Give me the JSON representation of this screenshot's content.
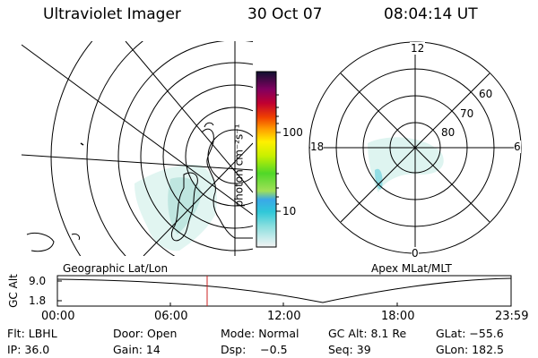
{
  "header": {
    "instrument": "Ultraviolet Imager",
    "date": "30 Oct 07",
    "time": "08:04:14 UT"
  },
  "colorbar": {
    "label": "photon cm⁻²s⁻¹",
    "ticks": [
      "100",
      "10"
    ]
  },
  "polar_plot": {
    "mlt_labels": {
      "top": "12",
      "bottom": "0",
      "left": "18",
      "right": "6"
    },
    "lat_labels": [
      "60",
      "70",
      "80"
    ]
  },
  "map_captions": {
    "left": "Geographic Lat/Lon",
    "right": "Apex MLat/MLT"
  },
  "altitude_strip": {
    "y_label": "GC Alt",
    "y_ticks": [
      "9.0",
      "1.8"
    ],
    "x_ticks": [
      "00:00",
      "06:00",
      "12:00",
      "18:00",
      "23:59"
    ],
    "marker_time": "08:04"
  },
  "info": {
    "filter": "Flt: LBHL",
    "door": "Door: Open",
    "mode": "Mode: Normal",
    "gc_alt": "GC Alt: 8.1 Re",
    "glat": "GLat: −55.6",
    "ip": "IP: 36.0",
    "gain": "Gain: 14",
    "dsp": "Dsp:    −0.5",
    "seq": "Seq: 39",
    "glon": "GLon: 182.5"
  },
  "colors": {
    "marker": "#cc2222",
    "aurora": "#b8e6e0"
  }
}
